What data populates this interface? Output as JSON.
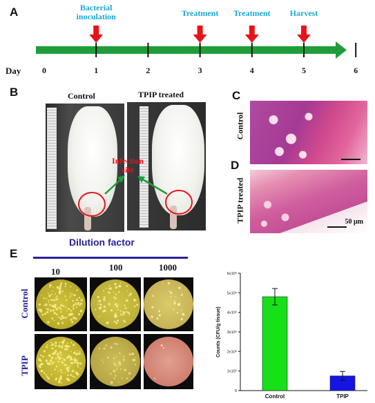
{
  "panels": {
    "a": "A",
    "b": "B",
    "c": "C",
    "d": "D",
    "e": "E"
  },
  "timeline": {
    "day_label": "Day",
    "ticks": [
      "0",
      "1",
      "2",
      "3",
      "4",
      "5",
      "6"
    ],
    "events": [
      {
        "label_line1": "Bacterial",
        "label_line2": "inoculation",
        "day": 1
      },
      {
        "label_line1": "Treatment",
        "label_line2": "",
        "day": 3
      },
      {
        "label_line1": "Treatment",
        "label_line2": "",
        "day": 4
      },
      {
        "label_line1": "Harvest",
        "label_line2": "",
        "day": 5
      }
    ],
    "colors": {
      "arrow": "#1f9d3a",
      "marker": "#e8131a",
      "label": "#19a6d8"
    }
  },
  "panel_b": {
    "control_label": "Control",
    "treated_label": "TPIP treated",
    "infection_label_line1": "Infection",
    "infection_label_line2": "site"
  },
  "panel_c": {
    "row_label": "Control"
  },
  "panel_d": {
    "row_label": "TPIP treated",
    "scale_bar": "50 μm"
  },
  "panel_e": {
    "dilution_title": "Dilution factor",
    "dilutions": [
      "10",
      "100",
      "1000"
    ],
    "row_labels": [
      "Control",
      "TPIP"
    ]
  },
  "chart_data": {
    "type": "bar",
    "categories": [
      "Control",
      "TPIP"
    ],
    "values": [
      4800000,
      750000
    ],
    "errors": [
      420000,
      230000
    ],
    "colors": [
      "#18e018",
      "#1414e6"
    ],
    "ylabel": "Counts (CFU/g tissue)",
    "ylim": [
      0,
      6000000
    ],
    "yticks": [
      0,
      1000000,
      2000000,
      3000000,
      4000000,
      5000000,
      6000000
    ],
    "ytick_labels": [
      "0",
      "1x10⁶",
      "2x10⁶",
      "3x10⁶",
      "4x10⁶",
      "5x10⁶",
      "6x10⁶"
    ],
    "grid": false
  }
}
